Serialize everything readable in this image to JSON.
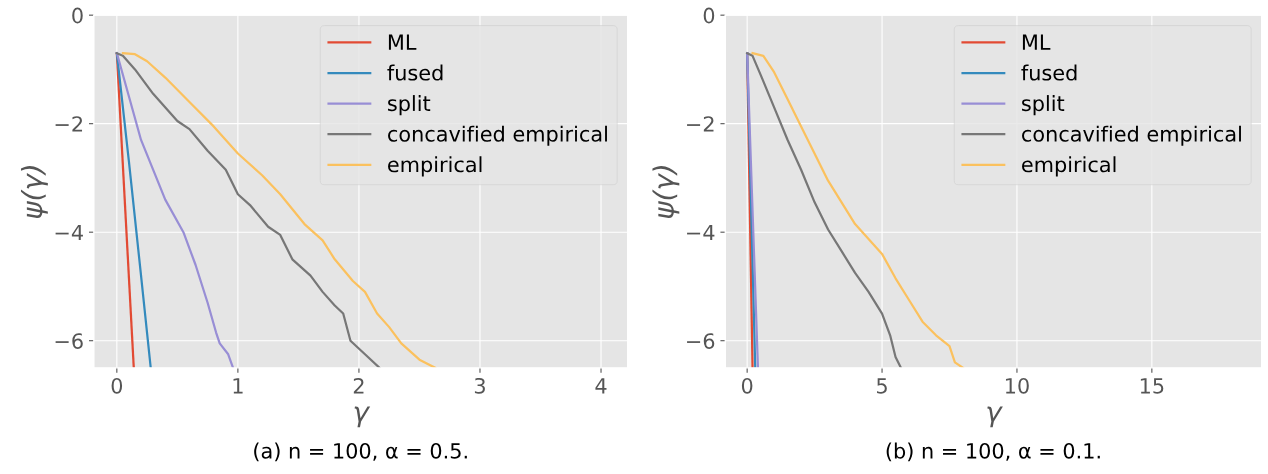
{
  "chart_data": [
    {
      "type": "line",
      "xlabel": "γ",
      "ylabel": "ψ(γ)",
      "annotations": [
        "(a) n = 100, α = 0.5."
      ],
      "xlim": [
        -0.19,
        4.22
      ],
      "ylim": [
        -6.5,
        0
      ],
      "xticks": [
        0,
        1,
        2,
        3,
        4
      ],
      "yticks": [
        {
          "value": -6,
          "label": "−6"
        },
        {
          "value": -4,
          "label": "−4"
        },
        {
          "value": -2,
          "label": "−2"
        },
        0
      ],
      "grid": true,
      "legend": "top right",
      "line_style": "solid",
      "series": [
        {
          "name": "ML",
          "color": "#e24a33",
          "x": [
            0,
            0.14
          ],
          "values": [
            -0.7,
            -6.5
          ]
        },
        {
          "name": "fused",
          "color": "#348abd",
          "x": [
            0,
            0.1,
            0.2,
            0.28
          ],
          "values": [
            -0.7,
            -2.7,
            -4.8,
            -6.5
          ]
        },
        {
          "name": "split",
          "color": "#988ed5",
          "x": [
            0,
            0.1,
            0.2,
            0.4,
            0.55,
            0.65,
            0.75,
            0.82,
            0.85,
            0.92,
            0.96
          ],
          "values": [
            -0.7,
            -1.5,
            -2.3,
            -3.4,
            -4.0,
            -4.6,
            -5.3,
            -5.85,
            -6.05,
            -6.25,
            -6.5
          ]
        },
        {
          "name": "concavified empirical",
          "color": "#777777",
          "x": [
            0,
            0.05,
            0.15,
            0.3,
            0.5,
            0.6,
            0.75,
            0.9,
            1.0,
            1.1,
            1.25,
            1.35,
            1.45,
            1.6,
            1.7,
            1.8,
            1.87,
            1.93,
            2.05,
            2.17
          ],
          "values": [
            -0.7,
            -0.75,
            -1.0,
            -1.45,
            -1.95,
            -2.1,
            -2.5,
            -2.85,
            -3.3,
            -3.5,
            -3.9,
            -4.05,
            -4.5,
            -4.8,
            -5.1,
            -5.35,
            -5.5,
            -6.0,
            -6.25,
            -6.5
          ]
        },
        {
          "name": "empirical",
          "color": "#fbc15e",
          "x": [
            0.05,
            0.15,
            0.25,
            0.4,
            0.6,
            0.8,
            1.0,
            1.2,
            1.35,
            1.55,
            1.7,
            1.8,
            1.95,
            2.05,
            2.15,
            2.25,
            2.35,
            2.5,
            2.63
          ],
          "values": [
            -0.7,
            -0.72,
            -0.85,
            -1.15,
            -1.6,
            -2.05,
            -2.55,
            -2.95,
            -3.3,
            -3.85,
            -4.15,
            -4.5,
            -4.9,
            -5.1,
            -5.5,
            -5.75,
            -6.05,
            -6.35,
            -6.5
          ]
        }
      ]
    },
    {
      "type": "line",
      "xlabel": "γ",
      "ylabel": "ψ(γ)",
      "annotations": [
        "(b) n = 100, α = 0.1."
      ],
      "xlim": [
        -0.81,
        19.07
      ],
      "ylim": [
        -6.5,
        0
      ],
      "xticks": [
        0,
        5,
        10,
        15
      ],
      "yticks": [
        {
          "value": -6,
          "label": "−6"
        },
        {
          "value": -4,
          "label": "−4"
        },
        {
          "value": -2,
          "label": "−2"
        },
        0
      ],
      "grid": true,
      "legend": "top right",
      "line_style": "solid",
      "series": [
        {
          "name": "ML",
          "color": "#e24a33",
          "x": [
            0,
            0.2
          ],
          "values": [
            -0.7,
            -6.5
          ]
        },
        {
          "name": "fused",
          "color": "#348abd",
          "x": [
            0,
            0.3
          ],
          "values": [
            -0.7,
            -6.5
          ]
        },
        {
          "name": "split",
          "color": "#988ed5",
          "x": [
            0,
            0.4
          ],
          "values": [
            -0.7,
            -6.5
          ]
        },
        {
          "name": "concavified empirical",
          "color": "#777777",
          "x": [
            0,
            0.2,
            0.5,
            1.0,
            1.5,
            2,
            2.5,
            3,
            3.5,
            4,
            4.5,
            5,
            5.3,
            5.5,
            5.7
          ],
          "values": [
            -0.7,
            -0.75,
            -1.1,
            -1.7,
            -2.3,
            -2.85,
            -3.45,
            -3.95,
            -4.35,
            -4.75,
            -5.1,
            -5.5,
            -5.9,
            -6.3,
            -6.5
          ]
        },
        {
          "name": "empirical",
          "color": "#fbc15e",
          "x": [
            0.2,
            0.6,
            1,
            1.5,
            2,
            3,
            4,
            5,
            5.5,
            6,
            6.5,
            7,
            7.5,
            7.7,
            8
          ],
          "values": [
            -0.7,
            -0.75,
            -1.05,
            -1.55,
            -2.05,
            -3.05,
            -3.85,
            -4.4,
            -4.85,
            -5.25,
            -5.65,
            -5.9,
            -6.1,
            -6.4,
            -6.5
          ]
        }
      ]
    }
  ]
}
